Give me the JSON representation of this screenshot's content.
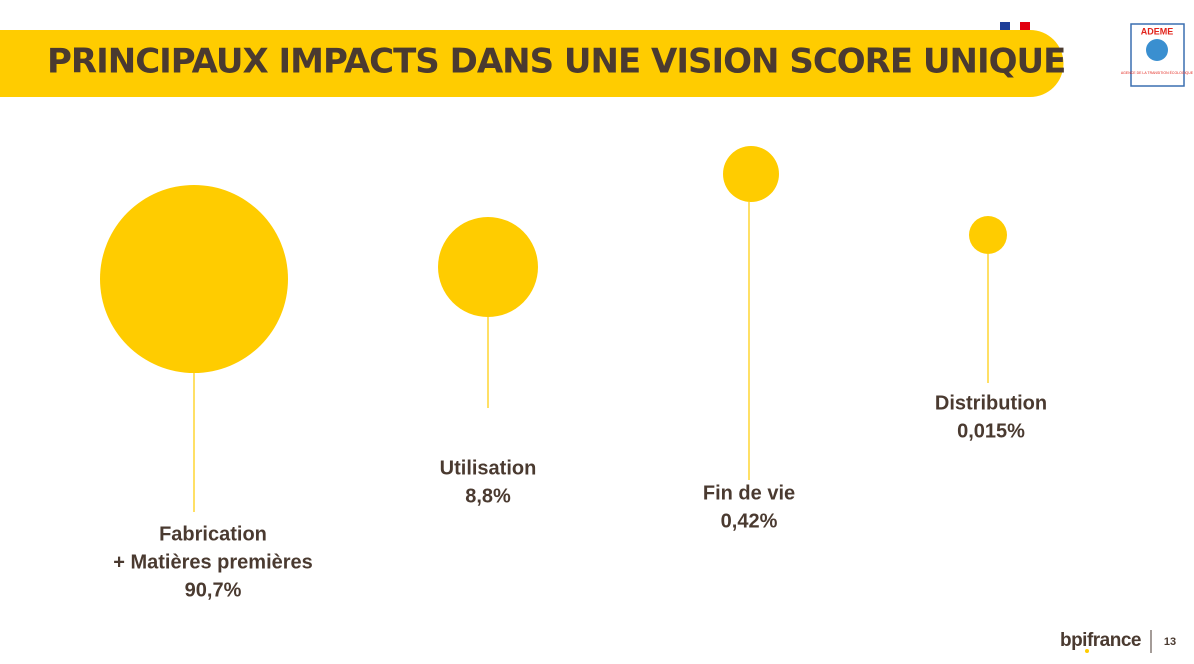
{
  "header": {
    "title": "PRINCIPAUX IMPACTS DANS UNE VISION SCORE UNIQUE"
  },
  "logos": {
    "ademe": "ADEME",
    "ademe_tagline": "AGENCE DE LA TRANSITION ÉCOLOGIQUE"
  },
  "items": [
    {
      "label": "Fabrication",
      "sublabel": "+ Matières premières",
      "value": "90,7%"
    },
    {
      "label": "Utilisation",
      "value": "8,8%"
    },
    {
      "label": "Fin de vie",
      "value": "0,42%"
    },
    {
      "label": "Distribution",
      "value": "0,015%"
    }
  ],
  "footer": {
    "brand": "bpifrance",
    "page": "13"
  }
}
